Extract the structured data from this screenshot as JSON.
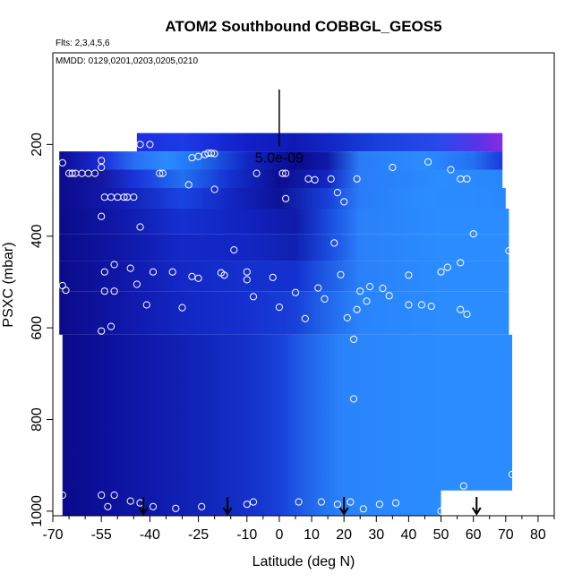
{
  "chart_data": {
    "type": "heatmap",
    "title": "ATOM2 Southbound COBBGL_GEOS5",
    "flights_note": "Flts: 2,3,4,5,6",
    "dates_note": "MMDD: 0129,0201,0203,0205,0210",
    "xlabel": "Latitude (deg N)",
    "ylabel": "PSXC (mbar)",
    "xlim": [
      -70,
      85
    ],
    "ylim": [
      1010,
      0
    ],
    "x_ticks": [
      -70,
      -55,
      -40,
      -25,
      -10,
      0,
      10,
      20,
      30,
      40,
      50,
      60,
      70,
      80
    ],
    "x_tick_labels": [
      "-70",
      "-55",
      "-40",
      "-25",
      "-10",
      "0",
      "10",
      "20",
      "30",
      "40",
      "50",
      "60",
      "70",
      "80"
    ],
    "x_minor_ticks": [
      -65,
      -60,
      -50,
      -45,
      -35,
      -30,
      -20,
      -15,
      -5,
      5,
      15,
      25,
      35,
      45,
      55,
      65,
      75,
      85
    ],
    "y_ticks": [
      200,
      400,
      600,
      800,
      1000
    ],
    "y_tick_labels": [
      "200",
      "400",
      "600",
      "800",
      "1000"
    ],
    "scale_bar": {
      "label": "5.0e-09",
      "lat": 0,
      "p_top": 80,
      "p_bottom": 210
    },
    "colors": {
      "dark": "#0a0a8c",
      "mid": "#1a2ed6",
      "light": "#2a8cff",
      "purple": "#7a28e0",
      "axis": "#000000",
      "marker": "#ffffff"
    },
    "blocks": [
      {
        "lat": [
          -44,
          69
        ],
        "p": [
          175,
          215
        ],
        "stops": [
          [
            -44,
            "#1e2ee0"
          ],
          [
            -30,
            "#1c3ae6"
          ],
          [
            -10,
            "#121fc8"
          ],
          [
            5,
            "#0f1ab4"
          ],
          [
            15,
            "#1226c4"
          ],
          [
            30,
            "#1840dc"
          ],
          [
            50,
            "#2a48ec"
          ],
          [
            62,
            "#5a34e6"
          ],
          [
            69,
            "#8a2ae4"
          ]
        ]
      },
      {
        "lat": [
          -68,
          69
        ],
        "p": [
          215,
          255
        ],
        "stops": [
          [
            -68,
            "#0c0c92"
          ],
          [
            -55,
            "#1a2ad6"
          ],
          [
            -45,
            "#2a6cf4"
          ],
          [
            -35,
            "#2a8cff"
          ],
          [
            -25,
            "#2070f0"
          ],
          [
            -10,
            "#1226c4"
          ],
          [
            5,
            "#0a0a8c"
          ],
          [
            15,
            "#0f1aa8"
          ],
          [
            25,
            "#2a7cf8"
          ],
          [
            45,
            "#2a8cff"
          ],
          [
            60,
            "#2470f2"
          ],
          [
            69,
            "#1a3ad8"
          ]
        ]
      },
      {
        "lat": [
          -68,
          69
        ],
        "p": [
          255,
          295
        ],
        "stops": [
          [
            -68,
            "#0c0c8c"
          ],
          [
            -55,
            "#14169e"
          ],
          [
            -45,
            "#1a32d8"
          ],
          [
            -30,
            "#2270f2"
          ],
          [
            -15,
            "#1430d0"
          ],
          [
            0,
            "#0c0e92"
          ],
          [
            15,
            "#1226c0"
          ],
          [
            25,
            "#2a7cf8"
          ],
          [
            50,
            "#2a8cff"
          ],
          [
            69,
            "#2a86fc"
          ]
        ]
      },
      {
        "lat": [
          -68,
          70
        ],
        "p": [
          295,
          340
        ],
        "stops": [
          [
            -68,
            "#0c0c8c"
          ],
          [
            -50,
            "#121ab2"
          ],
          [
            -30,
            "#1a44e0"
          ],
          [
            -15,
            "#1226c4"
          ],
          [
            0,
            "#0e1296"
          ],
          [
            15,
            "#1840d8"
          ],
          [
            25,
            "#2a7cf8"
          ],
          [
            45,
            "#2a8cff"
          ],
          [
            70,
            "#2a88fe"
          ]
        ]
      },
      {
        "lat": [
          -68,
          71
        ],
        "p": [
          340,
          395
        ],
        "stops": [
          [
            -68,
            "#0b0b8a"
          ],
          [
            -50,
            "#1018a8"
          ],
          [
            -30,
            "#1530d0"
          ],
          [
            -10,
            "#1122be"
          ],
          [
            5,
            "#0f1aa8"
          ],
          [
            15,
            "#1a4ade"
          ],
          [
            25,
            "#2a80fa"
          ],
          [
            50,
            "#2a8cff"
          ],
          [
            71,
            "#2a8cff"
          ]
        ]
      },
      {
        "lat": [
          -68,
          71
        ],
        "p": [
          395,
          455
        ],
        "stops": [
          [
            -68,
            "#0b0b8a"
          ],
          [
            -50,
            "#0f16a4"
          ],
          [
            -30,
            "#1428c8"
          ],
          [
            -10,
            "#1226c4"
          ],
          [
            5,
            "#1020b0"
          ],
          [
            15,
            "#1a4ade"
          ],
          [
            25,
            "#2a80fa"
          ],
          [
            50,
            "#2a8cff"
          ],
          [
            71,
            "#2a8cff"
          ]
        ]
      },
      {
        "lat": [
          -68,
          71
        ],
        "p": [
          455,
          520
        ],
        "stops": [
          [
            -68,
            "#0b0b8a"
          ],
          [
            -50,
            "#0f16a6"
          ],
          [
            -30,
            "#1428c6"
          ],
          [
            -10,
            "#1430cc"
          ],
          [
            5,
            "#1530d0"
          ],
          [
            15,
            "#1e5ce6"
          ],
          [
            25,
            "#2a80fa"
          ],
          [
            50,
            "#2a8cff"
          ],
          [
            71,
            "#2a8cff"
          ]
        ]
      },
      {
        "lat": [
          -68,
          71
        ],
        "p": [
          520,
          615
        ],
        "stops": [
          [
            -68,
            "#0b0b8a"
          ],
          [
            -50,
            "#0f16a6"
          ],
          [
            -30,
            "#1226c2"
          ],
          [
            -10,
            "#1530d0"
          ],
          [
            5,
            "#1840d8"
          ],
          [
            15,
            "#2268ec"
          ],
          [
            25,
            "#2a84fc"
          ],
          [
            50,
            "#2a8cff"
          ],
          [
            71,
            "#2a8cff"
          ]
        ]
      },
      {
        "lat": [
          -67,
          72
        ],
        "p": [
          615,
          1010
        ],
        "stops": [
          [
            -67,
            "#0a0a8a"
          ],
          [
            -50,
            "#0d12a0"
          ],
          [
            -30,
            "#1020b4"
          ],
          [
            -10,
            "#1430c8"
          ],
          [
            0,
            "#1840d8"
          ],
          [
            10,
            "#2268ec"
          ],
          [
            20,
            "#2a84fc"
          ],
          [
            50,
            "#2a8cff"
          ],
          [
            72,
            "#2a8cff"
          ]
        ]
      }
    ],
    "mask": {
      "lat": [
        50,
        72
      ],
      "p": [
        955,
        1010
      ]
    },
    "points": [
      [
        -45,
        200
      ],
      [
        -43,
        200
      ],
      [
        -40,
        200
      ],
      [
        -27,
        229
      ],
      [
        -25,
        226
      ],
      [
        -23,
        222
      ],
      [
        -22,
        219
      ],
      [
        -21,
        219
      ],
      [
        -20,
        220
      ],
      [
        -67,
        240
      ],
      [
        -55,
        235
      ],
      [
        -55,
        250
      ],
      [
        -65,
        263
      ],
      [
        -64,
        263
      ],
      [
        -63,
        263
      ],
      [
        -61,
        263
      ],
      [
        -59,
        263
      ],
      [
        -57,
        263
      ],
      [
        -37,
        263
      ],
      [
        -36,
        263
      ],
      [
        -7,
        263
      ],
      [
        1,
        263
      ],
      [
        2,
        263
      ],
      [
        9,
        275
      ],
      [
        11,
        277
      ],
      [
        16,
        275
      ],
      [
        24,
        275
      ],
      [
        35,
        250
      ],
      [
        46,
        238
      ],
      [
        53,
        255
      ],
      [
        56,
        275
      ],
      [
        58,
        275
      ],
      [
        -28,
        288
      ],
      [
        -20,
        298
      ],
      [
        -54,
        315
      ],
      [
        -52,
        315
      ],
      [
        -50,
        315
      ],
      [
        -48,
        315
      ],
      [
        -47,
        315
      ],
      [
        -45,
        315
      ],
      [
        18,
        305
      ],
      [
        2,
        318
      ],
      [
        20,
        325
      ],
      [
        -55,
        357
      ],
      [
        -43,
        380
      ],
      [
        17,
        415
      ],
      [
        60,
        395
      ],
      [
        71,
        432
      ],
      [
        -67,
        508
      ],
      [
        -66,
        518
      ],
      [
        -54,
        478
      ],
      [
        -51,
        462
      ],
      [
        -46,
        470
      ],
      [
        -39,
        478
      ],
      [
        -33,
        478
      ],
      [
        -27,
        488
      ],
      [
        -25,
        492
      ],
      [
        -10,
        478
      ],
      [
        -10,
        495
      ],
      [
        -2,
        490
      ],
      [
        -8,
        532
      ],
      [
        5,
        523
      ],
      [
        12,
        513
      ],
      [
        14,
        537
      ],
      [
        19,
        484
      ],
      [
        21,
        578
      ],
      [
        25,
        520
      ],
      [
        28,
        510
      ],
      [
        32,
        514
      ],
      [
        34,
        530
      ],
      [
        40,
        485
      ],
      [
        44,
        550
      ],
      [
        50,
        478
      ],
      [
        52,
        468
      ],
      [
        56,
        458
      ],
      [
        58,
        570
      ],
      [
        -54,
        520
      ],
      [
        -51,
        520
      ],
      [
        -44,
        505
      ],
      [
        -41,
        550
      ],
      [
        -30,
        556
      ],
      [
        -14,
        430
      ],
      [
        -18,
        480
      ],
      [
        -17,
        485
      ],
      [
        0,
        555
      ],
      [
        8,
        580
      ],
      [
        24,
        560
      ],
      [
        27,
        542
      ],
      [
        40,
        550
      ],
      [
        47,
        553
      ],
      [
        56,
        560
      ],
      [
        -55,
        607
      ],
      [
        -52,
        597
      ],
      [
        23,
        625
      ],
      [
        23,
        755
      ],
      [
        57,
        945
      ],
      [
        72,
        920
      ],
      [
        -67,
        965
      ],
      [
        -55,
        965
      ],
      [
        -51,
        965
      ],
      [
        -46,
        978
      ],
      [
        -43,
        982
      ],
      [
        -39,
        990
      ],
      [
        -32,
        994
      ],
      [
        -24,
        990
      ],
      [
        -10,
        985
      ],
      [
        -8,
        980
      ],
      [
        6,
        980
      ],
      [
        13,
        980
      ],
      [
        18,
        985
      ],
      [
        22,
        980
      ],
      [
        26,
        995
      ],
      [
        31,
        985
      ],
      [
        36,
        982
      ],
      [
        50,
        1000
      ],
      [
        -53,
        990
      ]
    ],
    "arrows": [
      -42,
      -16,
      20,
      61
    ]
  }
}
